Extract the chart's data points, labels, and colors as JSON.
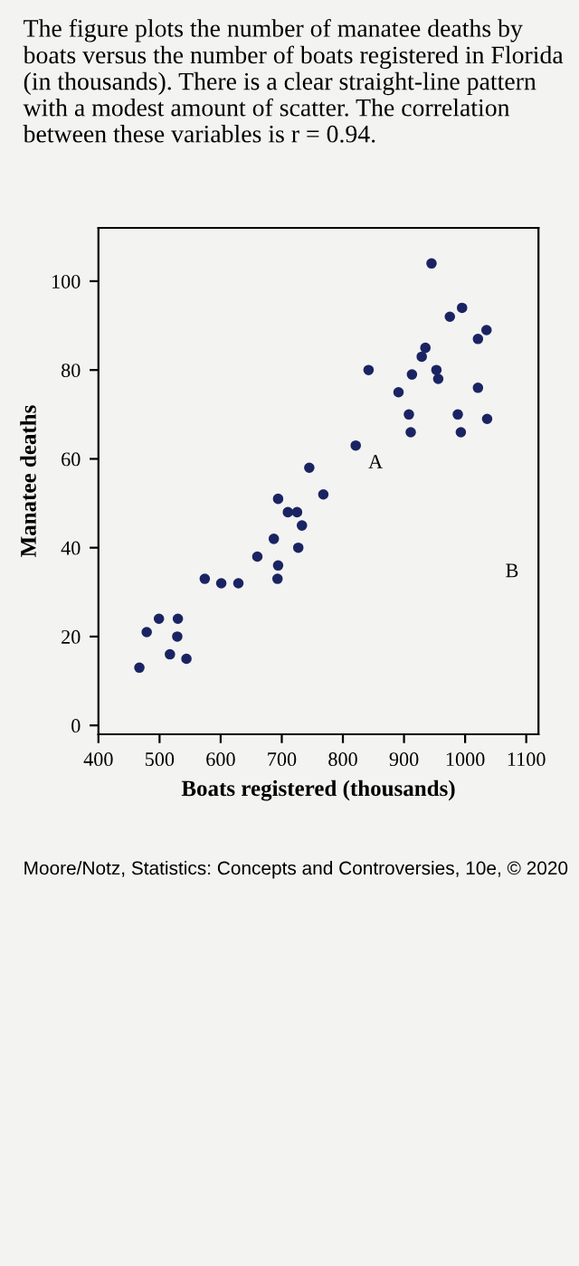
{
  "chart_data": {
    "type": "scatter",
    "title": "The figure plots the number of manatee deaths by boats versus the number of boats registered in Florida (in thousands). There is a clear straight-line pattern with a modest amount of scatter. The correlation between these variables is r = 0.94.",
    "xlabel": "Boats registered (thousands)",
    "ylabel": "Manatee deaths",
    "annotations": [
      {
        "text": "A",
        "x": 821,
        "y": 63
      },
      "B",
      "Moore/Notz, Statistics: Concepts and Controversies, 10e, © 2020"
    ],
    "series": [
      {
        "color": "#1b2463",
        "x": [
          467,
          479,
          499,
          517,
          529,
          530,
          544,
          574,
          601,
          629,
          660,
          693,
          694,
          687,
          694,
          710,
          725,
          727,
          733,
          745,
          768,
          821,
          842,
          891,
          911,
          908,
          913,
          929,
          935,
          945,
          956,
          953,
          975,
          995,
          993,
          988,
          1021,
          1021,
          1035,
          1036
        ],
        "values": [
          13,
          21,
          24,
          16,
          20,
          24,
          15,
          33,
          32,
          32,
          38,
          33,
          36,
          42,
          51,
          48,
          48,
          40,
          45,
          58,
          52,
          63,
          80,
          75,
          66,
          70,
          79,
          83,
          85,
          104,
          78,
          80,
          92,
          94,
          66,
          70,
          76,
          87,
          89,
          69
        ]
      }
    ],
    "xlim": [
      400,
      1120
    ],
    "ylim": [
      -2,
      112
    ],
    "xticks": [
      400,
      500,
      600,
      700,
      800,
      900,
      1000,
      1100
    ],
    "yticks": [
      0,
      20,
      40,
      60,
      80,
      100
    ],
    "marker": "circle",
    "grid": false
  }
}
